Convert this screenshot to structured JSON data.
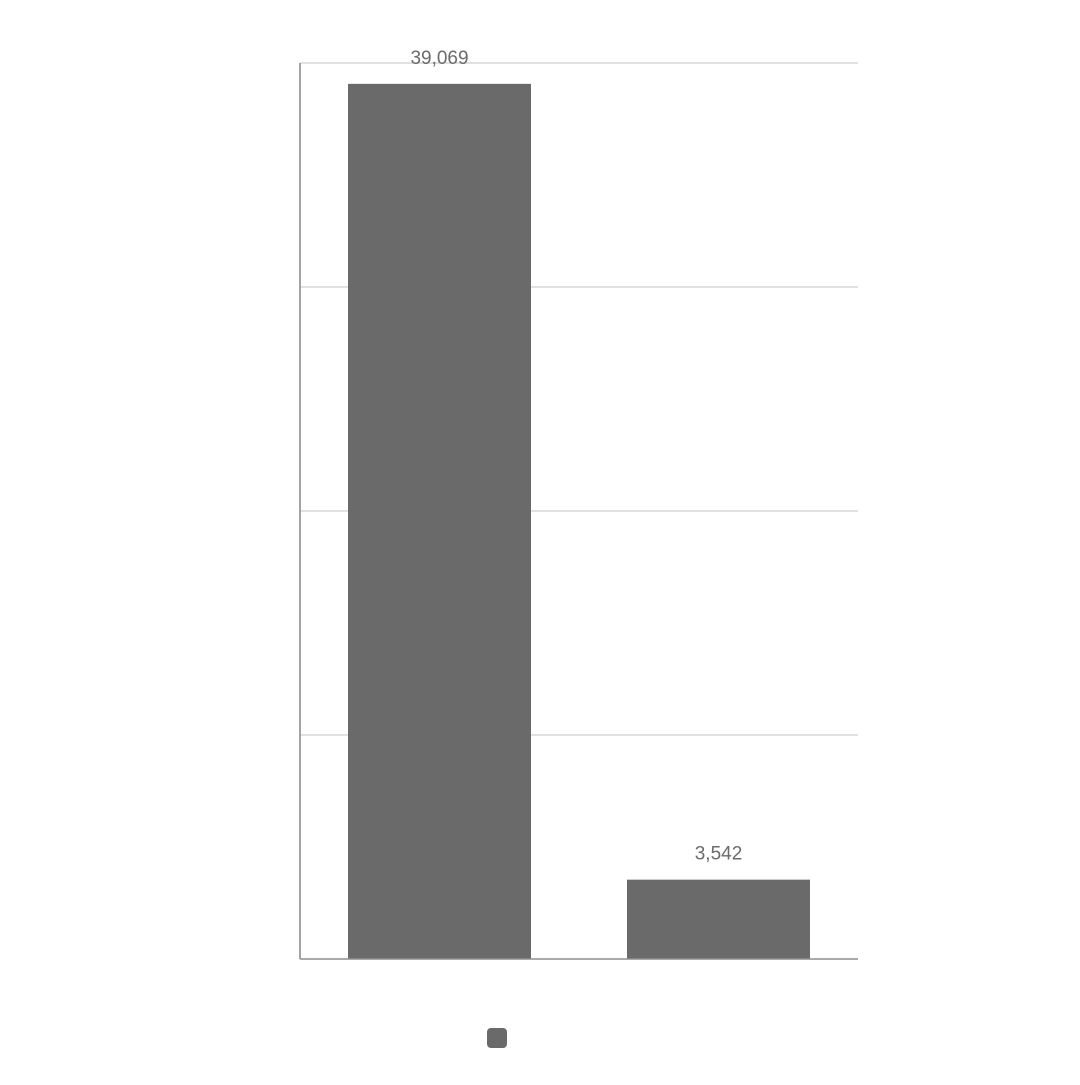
{
  "chart_data": {
    "type": "bar",
    "categories": [
      "",
      ""
    ],
    "values": [
      39069,
      3542
    ],
    "data_labels": [
      "39,069",
      "3,542"
    ],
    "ylim": [
      0,
      40000
    ],
    "y_gridlines": [
      0,
      10000,
      20000,
      30000,
      40000
    ],
    "grid": true,
    "legend": "bottom-center",
    "title": "",
    "xlabel": "",
    "ylabel": "",
    "colors": {
      "bar": "#6a6a6a",
      "grid": "#cfcfcf",
      "axis": "#8e8e8e",
      "label": "#6b6b6b",
      "legend_swatch": "#6a6a6a"
    }
  }
}
